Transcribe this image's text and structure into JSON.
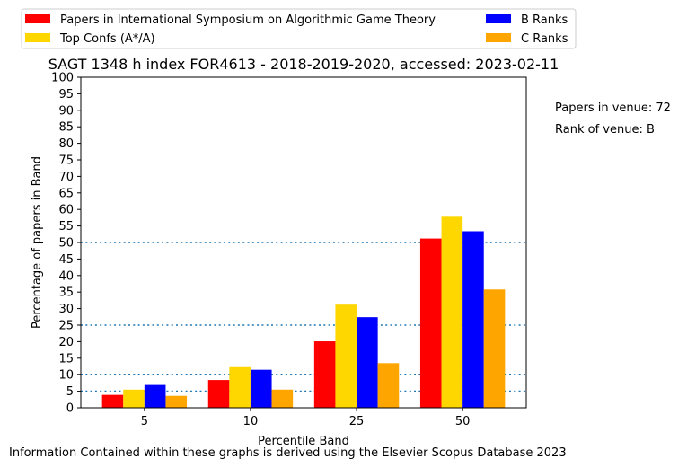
{
  "chart_data": {
    "type": "bar",
    "title": "SAGT 1348 h index FOR4613 - 2018-2019-2020, accessed: 2023-02-11",
    "xlabel": "Percentile Band",
    "ylabel": "Percentage of papers in Band",
    "categories": [
      "5",
      "10",
      "25",
      "50"
    ],
    "ylim": [
      0,
      100
    ],
    "yticks": [
      0,
      5,
      10,
      15,
      20,
      25,
      30,
      35,
      40,
      45,
      50,
      55,
      60,
      65,
      70,
      75,
      80,
      85,
      90,
      95,
      100
    ],
    "series": [
      {
        "name": "Papers in International Symposium on Algorithmic Game Theory",
        "color": "#ff0000",
        "values": [
          3.9,
          8.4,
          20.1,
          51.2
        ]
      },
      {
        "name": "Top Confs (A*/A)",
        "color": "#ffd700",
        "values": [
          5.5,
          12.3,
          31.2,
          57.8
        ]
      },
      {
        "name": "B Ranks",
        "color": "#0000ff",
        "values": [
          6.9,
          11.5,
          27.4,
          53.4
        ]
      },
      {
        "name": "C Ranks",
        "color": "#ffa500",
        "values": [
          3.6,
          5.5,
          13.5,
          35.8
        ]
      }
    ],
    "reference_lines": [
      5,
      10,
      25,
      50
    ],
    "reference_line_color": "#1f77b4",
    "grid": false,
    "legend_position": "top"
  },
  "side_notes": {
    "papers_in_venue": "Papers in venue: 72",
    "rank_of_venue": "Rank of venue: B"
  },
  "footer": {
    "text": "Information Contained within these graphs is derived using the Elsevier Scopus Database 2023"
  }
}
